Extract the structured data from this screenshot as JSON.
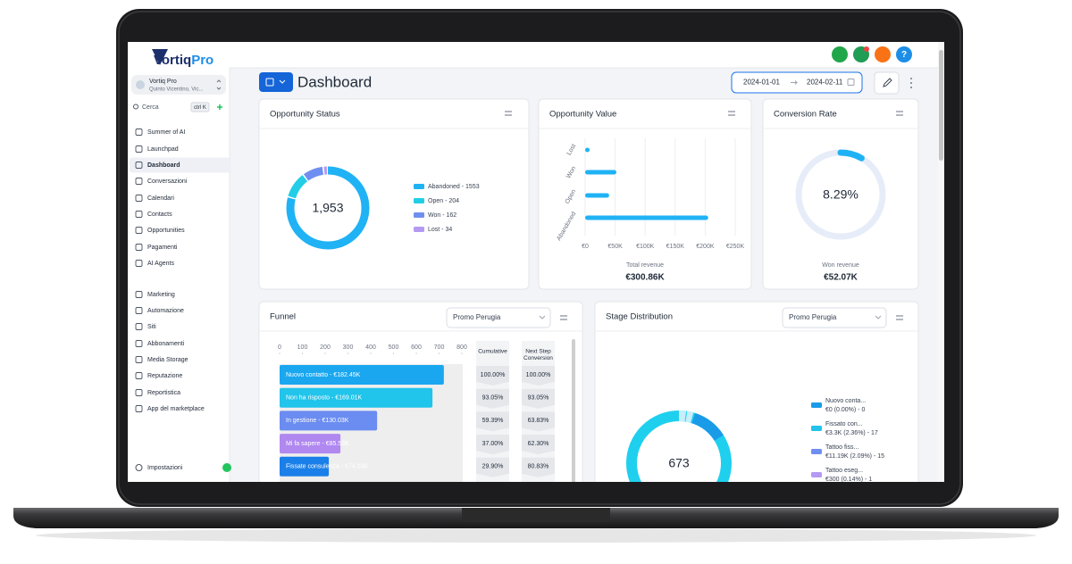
{
  "sidebar": {
    "logo": {
      "first": "Vortiq",
      "second": "Pro"
    },
    "account": {
      "name": "Vortiq Pro",
      "location": "Quinto Vicentino, Vic..."
    },
    "search": {
      "placeholder": "Cerca",
      "shortcut": "ctrl K"
    },
    "nav": [
      "Summer of AI",
      "Launchpad",
      "Dashboard",
      "Conversazioni",
      "Calendari",
      "Contacts",
      "Opportunities",
      "Pagamenti",
      "AI Agents"
    ],
    "nav_more": [
      "Marketing",
      "Automazione",
      "Siti",
      "Abbonamenti",
      "Media Storage",
      "Reputazione",
      "Reportistica",
      "App del marketplace"
    ],
    "settings": "Impostazioni"
  },
  "header": {
    "title": "Dashboard",
    "date_start": "2024-01-01",
    "date_end": "2024-02-11"
  },
  "opportunity_status": {
    "title": "Opportunity Status",
    "total": {
      "value": 1953,
      "label": "1,953"
    },
    "segments": [
      {
        "label": "Abandoned - 1553",
        "value": 1553,
        "color": "#1fb2f5"
      },
      {
        "label": "Open - 204",
        "value": 204,
        "color": "#22cde6"
      },
      {
        "label": "Won - 162",
        "value": 162,
        "color": "#6f8ff0"
      },
      {
        "label": "Lost - 34",
        "value": 34,
        "color": "#b59af2"
      }
    ]
  },
  "opportunity_value": {
    "title": "Opportunity Value",
    "type": "bar",
    "categories": [
      "Lost",
      "Won",
      "Open",
      "Abandoned"
    ],
    "values": [
      3790,
      52070,
      40000,
      205000
    ],
    "color": "#1fb2f5",
    "xlim": [
      0,
      250000
    ],
    "xticks": [
      {
        "value": 0,
        "label": "€0"
      },
      {
        "value": 50000,
        "label": "€50K"
      },
      {
        "value": 100000,
        "label": "€100K"
      },
      {
        "value": 150000,
        "label": "€150K"
      },
      {
        "value": 200000,
        "label": "€200K"
      },
      {
        "value": 250000,
        "label": "€250K"
      }
    ],
    "grid": true,
    "footer_label": "Total revenue",
    "footer_value": "€300.86K"
  },
  "conversion_rate": {
    "title": "Conversion Rate",
    "value": 8.29,
    "value_label": "8.29%",
    "color": "#1fb2f5",
    "footer_label": "Won revenue",
    "footer_value": "€52.07K"
  },
  "funnel": {
    "title": "Funnel",
    "filter": "Promo Perugia",
    "xlim": [
      0,
      800
    ],
    "xticks": [
      0,
      100,
      200,
      300,
      400,
      500,
      600,
      700,
      800
    ],
    "columns": {
      "cumulative": "Cumulative",
      "next_step": [
        "Next Step",
        "Conversion"
      ]
    },
    "rows": [
      {
        "label": "Nuovo contatto - €182.45K",
        "value": 721,
        "cumulative": "100.00%",
        "next_step": "100.00%",
        "color": "#1aa7f0"
      },
      {
        "label": "Non ha risposto - €169.01K",
        "value": 671,
        "cumulative": "93.05%",
        "next_step": "93.05%",
        "color": "#21c4ea"
      },
      {
        "label": "In gestione - €130.03K",
        "value": 428,
        "cumulative": "59.39%",
        "next_step": "63.83%",
        "color": "#6b8cf0"
      },
      {
        "label": "Mi fa sapere - €85.53K",
        "value": 267,
        "cumulative": "37.00%",
        "next_step": "62.30%",
        "color": "#b088f0"
      },
      {
        "label": "Fissate consulenza - €74.03K",
        "value": 216,
        "cumulative": "29.90%",
        "next_step": "80.83%",
        "color": "#1a7fe8"
      }
    ]
  },
  "stage_distribution": {
    "title": "Stage Distribution",
    "filter": "Promo Perugia",
    "total": 673,
    "stages": [
      {
        "name": "Nuovo conta...",
        "detail": "€0 (0.00%) - 0",
        "value": 0,
        "color": "#1a9be8"
      },
      {
        "name": "Fissato con...",
        "detail": "€3.3K (2.36%) - 17",
        "value": 17,
        "color": "#22c3ea"
      },
      {
        "name": "Tattoo fiss...",
        "detail": "€11.19K (2.09%) - 15",
        "value": 15,
        "color": "#6f8ff0"
      },
      {
        "name": "Tattoo eseg...",
        "detail": "€300 (0.14%) - 1",
        "value": 1,
        "color": "#b59af2"
      }
    ]
  }
}
